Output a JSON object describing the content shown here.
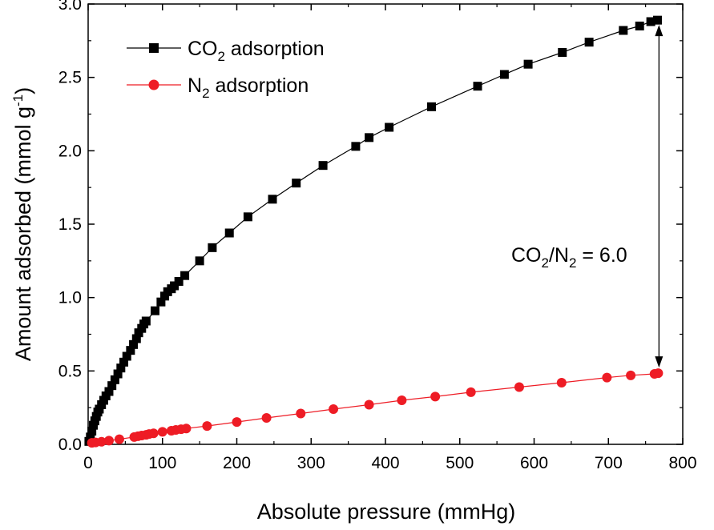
{
  "chart_data": {
    "type": "scatter",
    "title": "",
    "xlabel": "Absolute pressure (mmHg)",
    "ylabel": "Amount adsorbed (mmol g",
    "ylabel_sup": "-1",
    "ylabel_close": ")",
    "xlim": [
      0,
      800
    ],
    "ylim": [
      0,
      3.0
    ],
    "xticks": [
      "0",
      "100",
      "200",
      "300",
      "400",
      "500",
      "600",
      "700",
      "800"
    ],
    "yticks": [
      "0.0",
      "0.5",
      "1.0",
      "1.5",
      "2.0",
      "2.5",
      "3.0"
    ],
    "grid": false,
    "legend_position": "top-left",
    "series": [
      {
        "name": "CO2 adsorption",
        "legend_main": "CO",
        "legend_sub": "2",
        "legend_tail": " adsorption",
        "color": "#000000",
        "marker": "square",
        "points": [
          [
            1,
            0.02
          ],
          [
            3,
            0.05
          ],
          [
            5,
            0.09
          ],
          [
            7,
            0.13
          ],
          [
            9,
            0.16
          ],
          [
            11,
            0.19
          ],
          [
            13,
            0.22
          ],
          [
            15,
            0.24
          ],
          [
            18,
            0.27
          ],
          [
            21,
            0.3
          ],
          [
            24,
            0.33
          ],
          [
            28,
            0.36
          ],
          [
            32,
            0.4
          ],
          [
            36,
            0.44
          ],
          [
            40,
            0.48
          ],
          [
            44,
            0.52
          ],
          [
            48,
            0.56
          ],
          [
            52,
            0.6
          ],
          [
            57,
            0.64
          ],
          [
            61,
            0.68
          ],
          [
            65,
            0.72
          ],
          [
            68,
            0.76
          ],
          [
            72,
            0.79
          ],
          [
            75,
            0.82
          ],
          [
            78,
            0.84
          ],
          [
            90,
            0.91
          ],
          [
            98,
            0.97
          ],
          [
            103,
            1.01
          ],
          [
            107,
            1.04
          ],
          [
            112,
            1.06
          ],
          [
            116,
            1.08
          ],
          [
            122,
            1.11
          ],
          [
            130,
            1.15
          ],
          [
            150,
            1.25
          ],
          [
            167,
            1.34
          ],
          [
            190,
            1.44
          ],
          [
            215,
            1.55
          ],
          [
            248,
            1.67
          ],
          [
            280,
            1.78
          ],
          [
            316,
            1.9
          ],
          [
            360,
            2.03
          ],
          [
            378,
            2.09
          ],
          [
            405,
            2.16
          ],
          [
            462,
            2.3
          ],
          [
            524,
            2.44
          ],
          [
            560,
            2.52
          ],
          [
            592,
            2.59
          ],
          [
            638,
            2.67
          ],
          [
            674,
            2.74
          ],
          [
            720,
            2.82
          ],
          [
            742,
            2.85
          ],
          [
            757,
            2.88
          ],
          [
            766,
            2.89
          ]
        ]
      },
      {
        "name": "N2 adsorption",
        "legend_main": "N",
        "legend_sub": "2",
        "legend_tail": " adsorption",
        "color": "#ee1c25",
        "marker": "circle",
        "points": [
          [
            5,
            0.01
          ],
          [
            10,
            0.013
          ],
          [
            18,
            0.018
          ],
          [
            28,
            0.025
          ],
          [
            42,
            0.035
          ],
          [
            62,
            0.05
          ],
          [
            67,
            0.055
          ],
          [
            72,
            0.06
          ],
          [
            78,
            0.065
          ],
          [
            82,
            0.07
          ],
          [
            88,
            0.075
          ],
          [
            100,
            0.085
          ],
          [
            112,
            0.093
          ],
          [
            118,
            0.098
          ],
          [
            125,
            0.103
          ],
          [
            132,
            0.108
          ],
          [
            160,
            0.125
          ],
          [
            200,
            0.152
          ],
          [
            240,
            0.18
          ],
          [
            286,
            0.21
          ],
          [
            330,
            0.24
          ],
          [
            378,
            0.27
          ],
          [
            422,
            0.3
          ],
          [
            467,
            0.325
          ],
          [
            515,
            0.355
          ],
          [
            580,
            0.39
          ],
          [
            637,
            0.42
          ],
          [
            698,
            0.455
          ],
          [
            730,
            0.47
          ],
          [
            762,
            0.48
          ],
          [
            767,
            0.485
          ]
        ]
      }
    ],
    "annotations": [
      {
        "text_a": "CO",
        "sub_a": "2",
        "text_b": "/N",
        "sub_b": "2",
        "text_c": " = 6.0",
        "arrow_x": 768,
        "arrow_y_from": 0.49,
        "arrow_y_to": 2.89
      }
    ]
  }
}
